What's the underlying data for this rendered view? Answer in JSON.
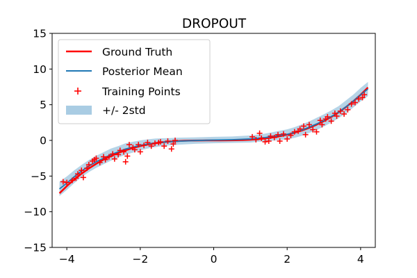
{
  "chart_data": {
    "type": "line",
    "title": "DROPOUT",
    "xlabel": "",
    "ylabel": "",
    "xlim": [
      -4.4,
      4.4
    ],
    "ylim": [
      -15,
      15
    ],
    "xticks": [
      -4,
      -2,
      0,
      2,
      4
    ],
    "yticks": [
      -15,
      -10,
      -5,
      0,
      5,
      10,
      15
    ],
    "xtick_labels": [
      "−4",
      "−2",
      "0",
      "2",
      "4"
    ],
    "ytick_labels": [
      "−15",
      "−10",
      "−5",
      "0",
      "5",
      "10",
      "15"
    ],
    "grid": false,
    "legend": {
      "position": "top-left",
      "entries": [
        "Ground Truth",
        "Posterior Mean",
        "Training Points",
        "+/- 2std"
      ]
    },
    "colors": {
      "ground_truth": "#ff0000",
      "posterior_mean": "#1f77b4",
      "training_points": "#ff0000",
      "band": "#a9cce3"
    },
    "series": [
      {
        "name": "Ground Truth",
        "kind": "line",
        "x": [
          -4.2,
          -4.0,
          -3.8,
          -3.6,
          -3.4,
          -3.2,
          -3.0,
          -2.8,
          -2.6,
          -2.4,
          -2.2,
          -2.0,
          -1.8,
          -1.6,
          -1.4,
          -1.2,
          -1.0,
          -0.8,
          -0.6,
          -0.4,
          -0.2,
          0.0,
          0.2,
          0.4,
          0.6,
          0.8,
          1.0,
          1.2,
          1.4,
          1.6,
          1.8,
          2.0,
          2.2,
          2.4,
          2.6,
          2.8,
          3.0,
          3.2,
          3.4,
          3.6,
          3.8,
          4.0,
          4.2
        ],
        "y": [
          -7.41,
          -6.4,
          -5.49,
          -4.67,
          -3.93,
          -3.28,
          -2.7,
          -2.2,
          -1.76,
          -1.38,
          -1.06,
          -0.8,
          -0.58,
          -0.41,
          -0.27,
          -0.17,
          -0.1,
          -0.05,
          -0.02,
          -0.01,
          0.0,
          0.0,
          0.0,
          0.01,
          0.02,
          0.05,
          0.1,
          0.17,
          0.27,
          0.41,
          0.58,
          0.8,
          1.06,
          1.38,
          1.76,
          2.2,
          2.7,
          3.28,
          3.93,
          4.67,
          5.49,
          6.4,
          7.41
        ]
      },
      {
        "name": "Posterior Mean",
        "kind": "line",
        "x": [
          -4.2,
          -4.0,
          -3.8,
          -3.6,
          -3.4,
          -3.2,
          -3.0,
          -2.8,
          -2.6,
          -2.4,
          -2.2,
          -2.0,
          -1.8,
          -1.6,
          -1.4,
          -1.2,
          -1.0,
          -0.5,
          0.0,
          0.5,
          1.0,
          1.2,
          1.4,
          1.6,
          1.8,
          2.0,
          2.2,
          2.4,
          2.6,
          2.8,
          3.0,
          3.2,
          3.4,
          3.6,
          3.8,
          4.0,
          4.2
        ],
        "y": [
          -6.8,
          -6.0,
          -5.1,
          -4.3,
          -3.6,
          -3.0,
          -2.5,
          -2.0,
          -1.6,
          -1.2,
          -0.95,
          -0.7,
          -0.5,
          -0.35,
          -0.25,
          -0.18,
          -0.12,
          -0.02,
          0.05,
          0.1,
          0.2,
          0.3,
          0.4,
          0.55,
          0.7,
          0.85,
          1.1,
          1.45,
          1.85,
          2.3,
          2.8,
          3.35,
          3.95,
          4.7,
          5.5,
          6.4,
          7.2
        ]
      },
      {
        "name": "+/- 2std",
        "kind": "band",
        "x": [
          -4.2,
          -4.0,
          -3.8,
          -3.6,
          -3.4,
          -3.2,
          -3.0,
          -2.8,
          -2.6,
          -2.4,
          -2.2,
          -2.0,
          -1.8,
          -1.6,
          -1.4,
          -1.2,
          -1.0,
          -0.5,
          0.0,
          0.5,
          1.0,
          1.2,
          1.4,
          1.6,
          1.8,
          2.0,
          2.2,
          2.4,
          2.6,
          2.8,
          3.0,
          3.2,
          3.4,
          3.6,
          3.8,
          4.0,
          4.2
        ],
        "std2": [
          1.0,
          0.95,
          0.9,
          0.85,
          0.85,
          0.85,
          0.85,
          0.85,
          0.8,
          0.8,
          0.75,
          0.7,
          0.65,
          0.6,
          0.55,
          0.5,
          0.5,
          0.45,
          0.45,
          0.45,
          0.5,
          0.5,
          0.55,
          0.6,
          0.65,
          0.7,
          0.75,
          0.8,
          0.8,
          0.85,
          0.85,
          0.85,
          0.85,
          0.9,
          0.9,
          0.95,
          1.0
        ]
      },
      {
        "name": "Training Points",
        "kind": "scatter",
        "x": [
          -4.1,
          -4.0,
          -3.85,
          -3.75,
          -3.7,
          -3.6,
          -3.55,
          -3.45,
          -3.4,
          -3.3,
          -3.25,
          -3.2,
          -3.1,
          -3.0,
          -2.95,
          -2.85,
          -2.75,
          -2.7,
          -2.6,
          -2.55,
          -2.45,
          -2.4,
          -2.35,
          -2.3,
          -2.2,
          -2.15,
          -2.05,
          -2.0,
          -1.9,
          -1.8,
          -1.7,
          -1.6,
          -1.5,
          -1.45,
          -1.35,
          -1.25,
          -1.15,
          -1.1,
          -1.05,
          1.05,
          1.15,
          1.25,
          1.3,
          1.4,
          1.5,
          1.55,
          1.65,
          1.75,
          1.8,
          1.9,
          2.0,
          2.1,
          2.2,
          2.3,
          2.35,
          2.45,
          2.5,
          2.6,
          2.7,
          2.8,
          2.9,
          2.95,
          3.05,
          3.1,
          3.2,
          3.3,
          3.35,
          3.45,
          3.55,
          3.65,
          3.75,
          3.85,
          3.95,
          4.05,
          4.1
        ],
        "y": [
          -5.8,
          -5.9,
          -5.6,
          -5.3,
          -4.7,
          -4.2,
          -5.2,
          -3.9,
          -3.4,
          -2.9,
          -2.7,
          -2.5,
          -3.1,
          -2.3,
          -2.7,
          -2.3,
          -1.9,
          -2.6,
          -2.0,
          -1.4,
          -1.6,
          -3.0,
          -2.2,
          -0.6,
          -1.0,
          -1.3,
          -0.6,
          -1.6,
          -0.7,
          -0.3,
          -0.8,
          -0.4,
          -0.3,
          -0.2,
          -0.8,
          -0.1,
          -1.2,
          -0.5,
          0.0,
          0.5,
          0.1,
          1.0,
          0.3,
          -0.2,
          -0.1,
          0.6,
          0.4,
          0.8,
          -0.1,
          0.9,
          0.2,
          0.7,
          1.2,
          1.3,
          1.6,
          2.0,
          0.8,
          2.2,
          1.5,
          1.2,
          2.8,
          2.2,
          3.0,
          3.3,
          2.7,
          3.8,
          3.4,
          4.1,
          3.7,
          4.3,
          5.1,
          5.3,
          5.8,
          6.0,
          6.4
        ]
      }
    ]
  }
}
